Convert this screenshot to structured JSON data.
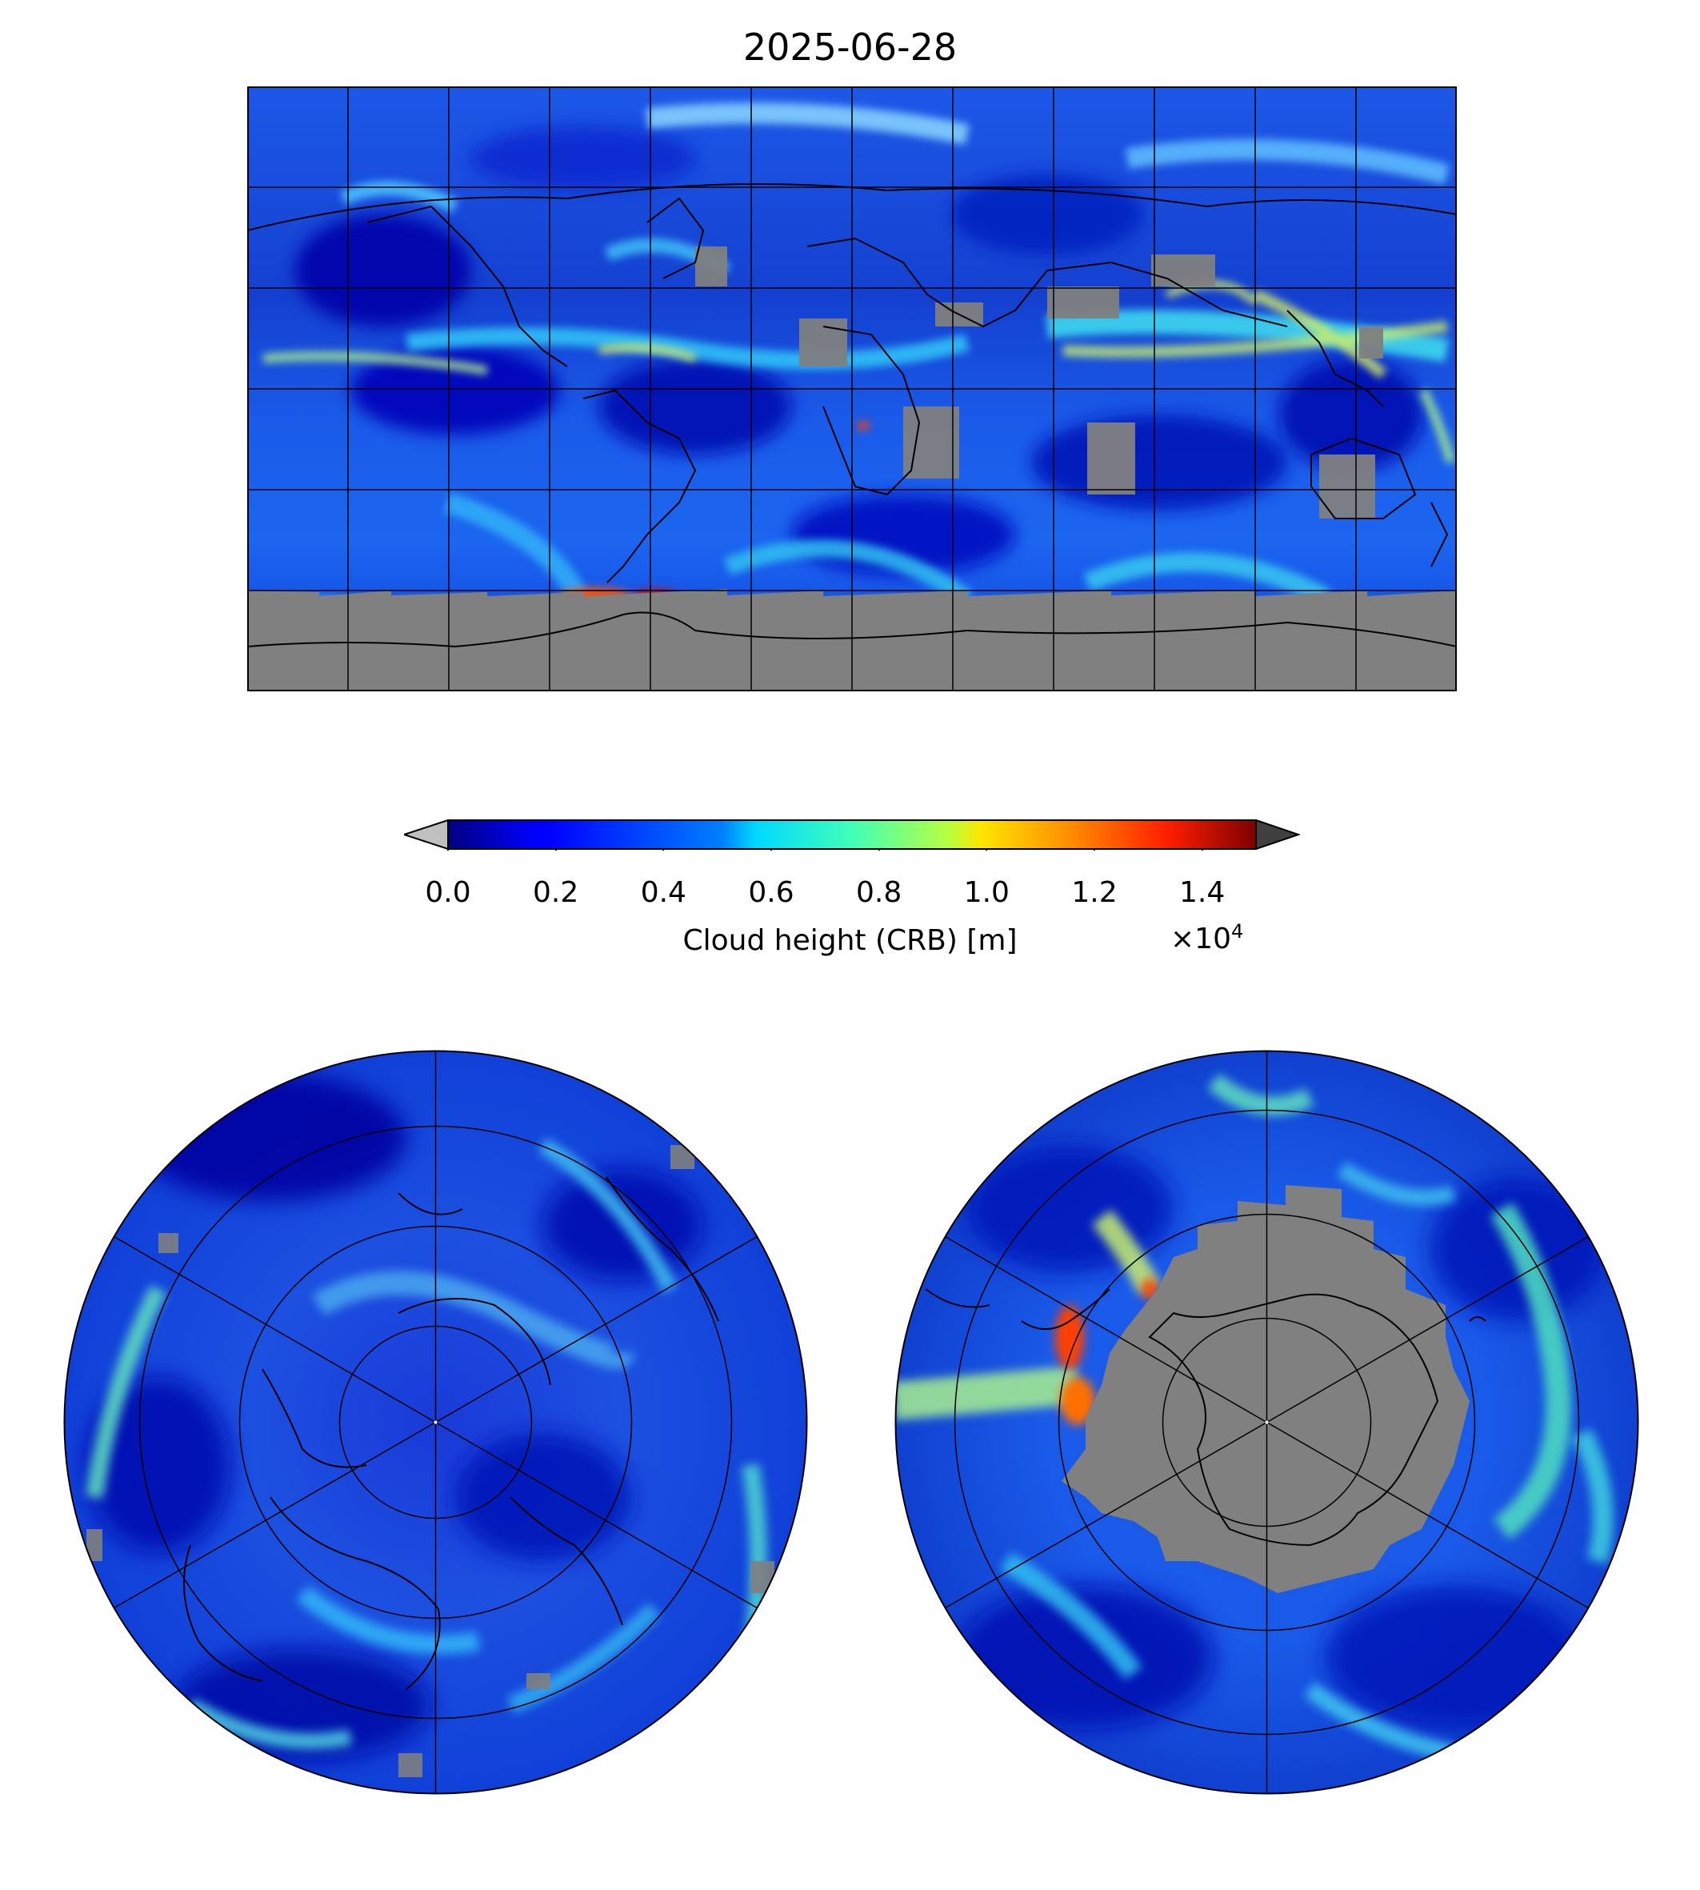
{
  "title": "2025-06-28",
  "colorbar": {
    "label": "Cloud height (CRB) [m]",
    "scale_base": "×10",
    "scale_exp": "4",
    "ticks": [
      "0.0",
      "0.2",
      "0.4",
      "0.6",
      "0.8",
      "1.0",
      "1.2",
      "1.4"
    ],
    "tick_values": [
      0.0,
      0.2,
      0.4,
      0.6,
      0.8,
      1.0,
      1.2,
      1.4
    ],
    "range": [
      0.0,
      1.5
    ],
    "colormap": "jet",
    "extend": "both",
    "under_color": "#c0c0c0",
    "over_color": "#404040",
    "nodata_color": "#808080"
  },
  "maps": {
    "equirectangular": {
      "extent_lon": [
        -180,
        180
      ],
      "extent_lat": [
        -90,
        90
      ],
      "grid_spacing_lon": 30,
      "grid_spacing_lat": 30
    },
    "north_polar": {
      "hemisphere": "north"
    },
    "south_polar": {
      "hemisphere": "south"
    }
  }
}
